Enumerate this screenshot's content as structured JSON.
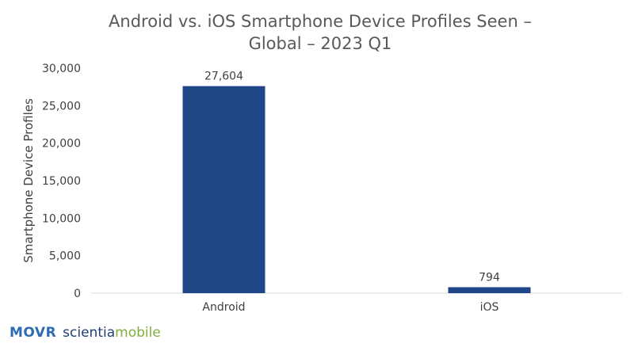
{
  "chart_data": {
    "type": "bar",
    "title_lines": [
      "Android vs. iOS Smartphone Device Profiles Seen –",
      "Global – 2023 Q1"
    ],
    "categories": [
      "Android",
      "iOS"
    ],
    "values": [
      27604,
      794
    ],
    "value_labels": [
      "27,604",
      "794"
    ],
    "xlabel": "",
    "ylabel": "Smartphone Device Profiles",
    "ylim": [
      0,
      30000
    ],
    "yticks": [
      0,
      5000,
      10000,
      15000,
      20000,
      25000,
      30000
    ],
    "ytick_labels": [
      "0",
      "5,000",
      "10,000",
      "15,000",
      "20,000",
      "25,000",
      "30,000"
    ],
    "grid": false,
    "legend": "none",
    "bar_color": "#1f4788",
    "axis_color": "#d9d9d9"
  },
  "footer": {
    "brand_movr": "MOVR",
    "brand_scientia": "scientia",
    "brand_mobile": "mobile"
  }
}
